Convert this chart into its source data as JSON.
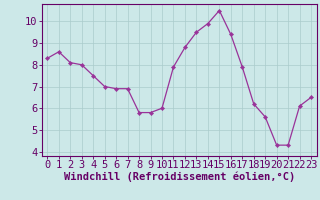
{
  "x": [
    0,
    1,
    2,
    3,
    4,
    5,
    6,
    7,
    8,
    9,
    10,
    11,
    12,
    13,
    14,
    15,
    16,
    17,
    18,
    19,
    20,
    21,
    22,
    23
  ],
  "y": [
    8.3,
    8.6,
    8.1,
    8.0,
    7.5,
    7.0,
    6.9,
    6.9,
    5.8,
    5.8,
    6.0,
    7.9,
    8.8,
    9.5,
    9.9,
    10.5,
    9.4,
    7.9,
    6.2,
    5.6,
    4.3,
    4.3,
    6.1,
    6.5
  ],
  "line_color": "#993399",
  "marker_color": "#993399",
  "bg_color": "#cce8e8",
  "grid_color": "#aacccc",
  "xlabel": "Windchill (Refroidissement éolien,°C)",
  "xlim": [
    -0.5,
    23.5
  ],
  "ylim": [
    3.8,
    10.8
  ],
  "yticks": [
    4,
    5,
    6,
    7,
    8,
    9,
    10
  ],
  "xticks": [
    0,
    1,
    2,
    3,
    4,
    5,
    6,
    7,
    8,
    9,
    10,
    11,
    12,
    13,
    14,
    15,
    16,
    17,
    18,
    19,
    20,
    21,
    22,
    23
  ],
  "xlabel_fontsize": 7.5,
  "tick_fontsize": 7.5,
  "axis_label_color": "#660066",
  "spine_color": "#660066",
  "grid_linewidth": 0.5
}
